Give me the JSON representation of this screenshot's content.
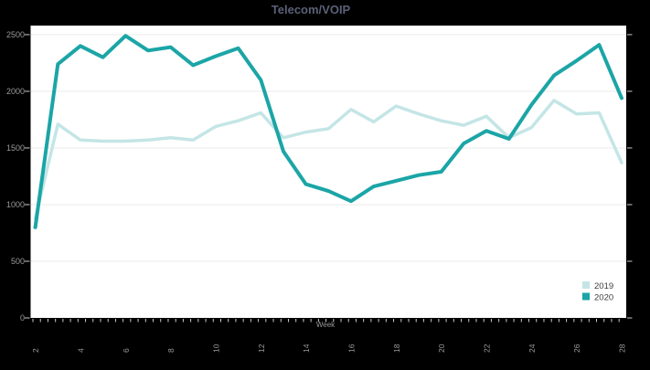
{
  "chart_data": {
    "type": "line",
    "title": "Telecom/VOIP",
    "xlabel": "Week",
    "x": [
      2,
      3,
      4,
      5,
      6,
      7,
      8,
      9,
      10,
      11,
      12,
      13,
      14,
      15,
      16,
      17,
      18,
      19,
      20,
      21,
      22,
      23,
      24,
      25,
      26,
      27,
      28
    ],
    "series": [
      {
        "name": "2019",
        "color": "#c4e5e6",
        "values": [
          880,
          1710,
          1570,
          1560,
          1560,
          1570,
          1590,
          1570,
          1690,
          1740,
          1810,
          1590,
          1640,
          1670,
          1840,
          1730,
          1870,
          1800,
          1740,
          1700,
          1780,
          1590,
          1680,
          1920,
          1800,
          1810,
          1370
        ]
      },
      {
        "name": "2020",
        "color": "#1ba5a6",
        "values": [
          800,
          2240,
          2400,
          2300,
          2490,
          2360,
          2390,
          2230,
          2310,
          2380,
          2100,
          1470,
          1180,
          1120,
          1030,
          1160,
          1210,
          1260,
          1290,
          1540,
          1650,
          1580,
          1880,
          2140,
          2270,
          2410,
          1940
        ]
      }
    ],
    "x_tick_labels": [
      2,
      4,
      6,
      8,
      10,
      12,
      14,
      16,
      18,
      20,
      22,
      24,
      26,
      28
    ],
    "y_ticks": [
      0,
      500,
      1000,
      1500,
      2000,
      2500
    ],
    "ylim": [
      0,
      2580
    ],
    "grid": "horizontal",
    "legend_position": "bottom-right"
  },
  "colors": {
    "page_background": "#000000",
    "plot_background": "#ffffff",
    "gridline": "#ebebeb",
    "tick": "#cccccc",
    "axis_label": "#9b9b9b",
    "title": "#5a6177",
    "legend_text": "#3d3d3d"
  }
}
